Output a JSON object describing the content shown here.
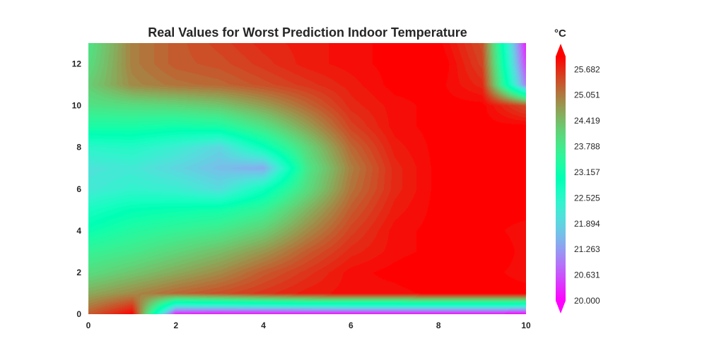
{
  "chart_data": {
    "type": "heatmap",
    "subtype": "filled-contour",
    "title": "Real Values for Worst Prediction Indoor Temperature",
    "xlabel": "",
    "ylabel": "",
    "colormap": "rainbow",
    "xlim": [
      0,
      10
    ],
    "ylim": [
      0,
      13
    ],
    "x_ticks": [
      "0",
      "2",
      "4",
      "6",
      "8",
      "10"
    ],
    "y_ticks": [
      "0",
      "2",
      "4",
      "6",
      "8",
      "10",
      "12"
    ],
    "grid": false,
    "x": [
      0,
      1,
      2,
      3,
      4,
      5,
      6,
      7,
      8,
      9,
      10
    ],
    "y": [
      0,
      1,
      2,
      3,
      4,
      5,
      6,
      7,
      8,
      9,
      10,
      11,
      12,
      13
    ],
    "z": [
      [
        25.3,
        26.0,
        20.2,
        20.1,
        20.1,
        20.1,
        20.1,
        20.1,
        20.1,
        20.1,
        20.0
      ],
      [
        24.6,
        24.9,
        25.2,
        25.4,
        25.6,
        25.8,
        25.9,
        25.9,
        26.0,
        26.0,
        26.0
      ],
      [
        24.0,
        24.3,
        24.6,
        24.9,
        25.3,
        25.6,
        25.9,
        26.0,
        26.1,
        26.0,
        25.9
      ],
      [
        23.6,
        23.8,
        24.1,
        24.4,
        24.8,
        25.3,
        25.7,
        25.9,
        26.0,
        26.1,
        25.9
      ],
      [
        23.1,
        23.4,
        23.6,
        23.8,
        24.2,
        24.9,
        25.5,
        25.9,
        26.0,
        26.0,
        25.9
      ],
      [
        22.7,
        23.0,
        23.1,
        23.2,
        23.6,
        24.5,
        25.3,
        25.8,
        26.0,
        26.0,
        26.0
      ],
      [
        22.2,
        22.4,
        22.3,
        22.0,
        22.8,
        24.0,
        25.1,
        25.7,
        26.0,
        26.0,
        26.0
      ],
      [
        22.1,
        22.2,
        21.9,
        21.6,
        21.4,
        23.8,
        25.0,
        25.7,
        26.0,
        26.0,
        26.0
      ],
      [
        22.5,
        22.6,
        22.3,
        21.9,
        22.9,
        24.1,
        25.2,
        25.8,
        26.0,
        26.0,
        26.0
      ],
      [
        23.3,
        23.3,
        23.2,
        23.3,
        23.9,
        24.7,
        25.5,
        25.9,
        26.0,
        26.0,
        26.0
      ],
      [
        23.9,
        24.0,
        24.1,
        24.3,
        24.7,
        25.2,
        25.7,
        25.9,
        26.0,
        26.0,
        25.4
      ],
      [
        24.2,
        24.9,
        25.1,
        25.2,
        25.4,
        25.6,
        25.8,
        26.0,
        26.0,
        25.7,
        21.0
      ],
      [
        24.0,
        25.0,
        25.3,
        25.4,
        25.6,
        25.8,
        25.9,
        26.0,
        26.1,
        25.5,
        20.5
      ],
      [
        23.9,
        25.0,
        25.3,
        25.5,
        25.7,
        25.8,
        25.9,
        26.0,
        26.0,
        25.4,
        20.2
      ]
    ],
    "colorbar": {
      "title": "°C",
      "ticks": [
        "20.000",
        "20.631",
        "21.263",
        "21.894",
        "22.525",
        "23.157",
        "23.788",
        "24.419",
        "25.051",
        "25.682"
      ],
      "vmin": 20.0,
      "vmax": 26.0,
      "extend": "both"
    }
  }
}
